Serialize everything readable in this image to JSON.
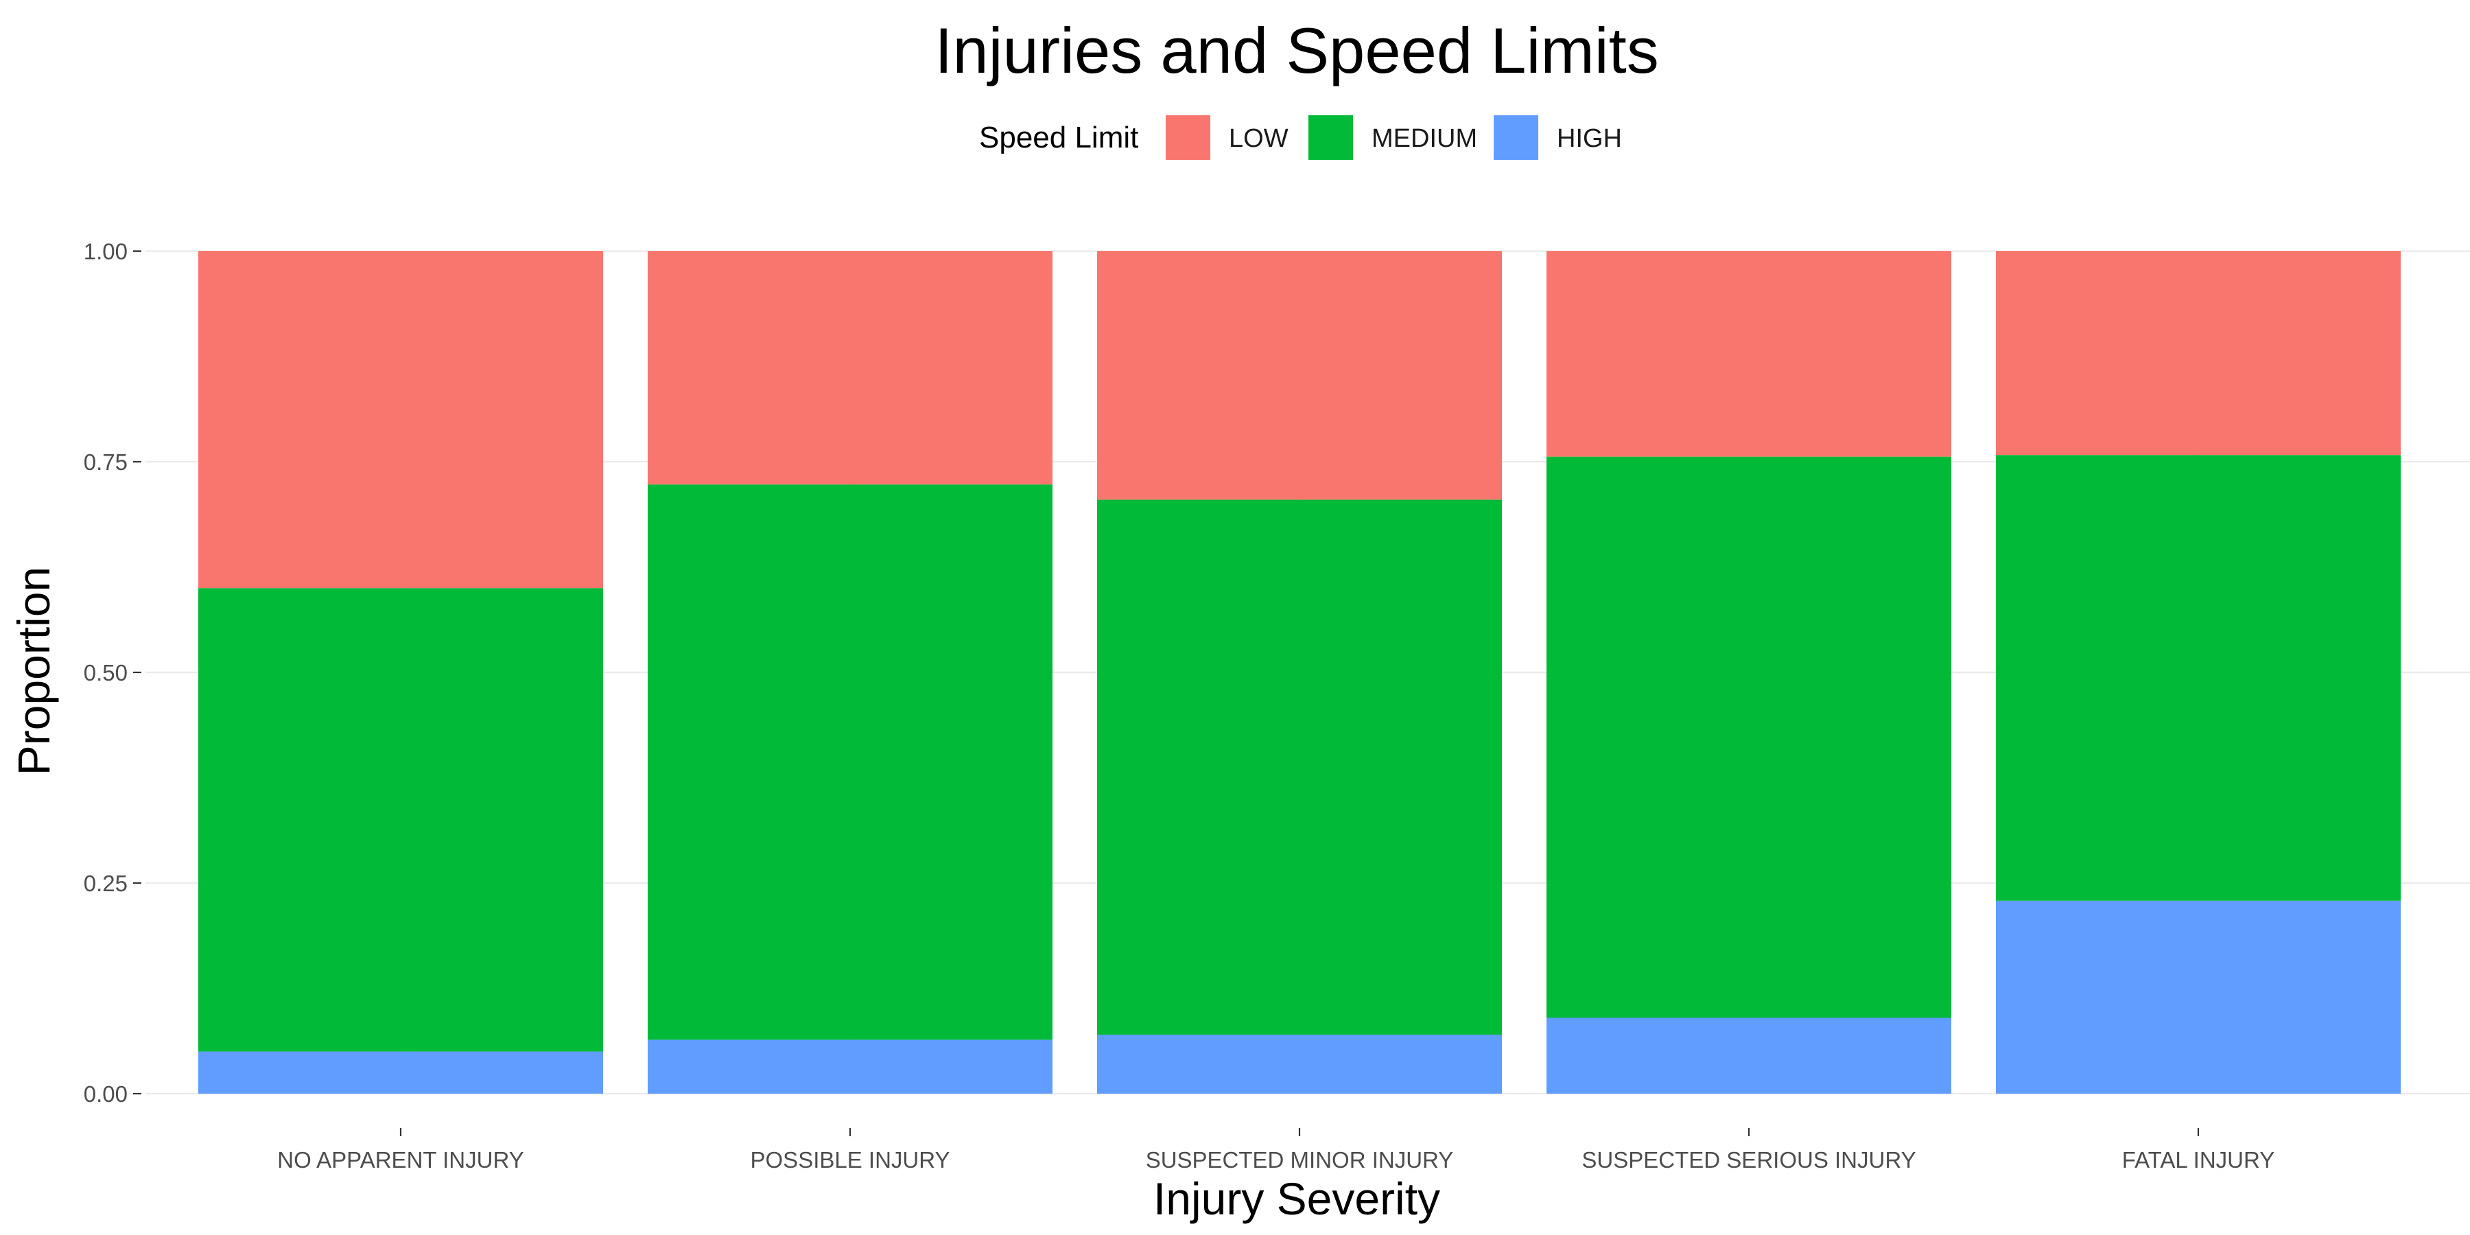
{
  "chart_data": {
    "type": "bar",
    "stacked": true,
    "title": "Injuries and Speed Limits",
    "xlabel": "Injury Severity",
    "ylabel": "Proportion",
    "ylim": [
      0,
      1
    ],
    "yticks": [
      "0.00",
      "0.25",
      "0.50",
      "0.75",
      "1.00"
    ],
    "ytick_values": [
      0,
      0.25,
      0.5,
      0.75,
      1.0
    ],
    "grid": true,
    "legend_title": "Speed Limit",
    "legend_position": "top",
    "categories": [
      "NO APPARENT INJURY",
      "POSSIBLE INJURY",
      "SUSPECTED MINOR INJURY",
      "SUSPECTED SERIOUS INJURY",
      "FATAL INJURY"
    ],
    "series": [
      {
        "name": "LOW",
        "color": "#f8766d",
        "values": [
          0.4,
          0.277,
          0.295,
          0.244,
          0.242
        ]
      },
      {
        "name": "MEDIUM",
        "color": "#00ba38",
        "values": [
          0.55,
          0.659,
          0.635,
          0.666,
          0.529
        ]
      },
      {
        "name": "HIGH",
        "color": "#619cff",
        "values": [
          0.05,
          0.064,
          0.07,
          0.09,
          0.229
        ]
      }
    ]
  }
}
